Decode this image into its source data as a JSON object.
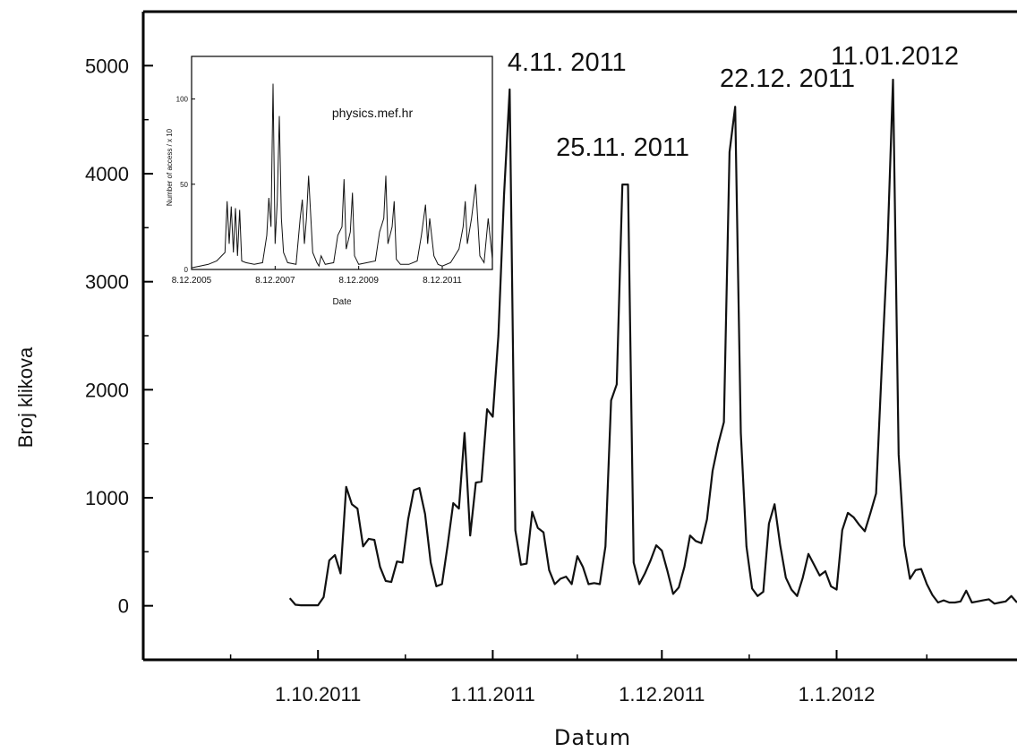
{
  "chart_data": [
    {
      "type": "line",
      "title": "",
      "xlabel": "Datum",
      "ylabel": "Broj klikova",
      "ylim": [
        -500,
        5500
      ],
      "yticks": [
        0,
        1000,
        2000,
        3000,
        4000,
        5000
      ],
      "xticks": [
        {
          "label": "1.10.2011",
          "day": 0
        },
        {
          "label": "1.11.2011",
          "day": 31
        },
        {
          "label": "1.12.2011",
          "day": 61
        },
        {
          "label": "1.1.2012",
          "day": 92
        }
      ],
      "xlim_days": [
        -31,
        124
      ],
      "grid": false,
      "legend": "none",
      "annotations": [
        {
          "text": "4.11. 2011",
          "x_day": 34,
          "y": 4780
        },
        {
          "text": "25.11. 2011",
          "x_day": 55,
          "y": 3900
        },
        {
          "text": "22.12. 2011",
          "x_day": 82,
          "y": 4620
        },
        {
          "text": "11.01.2012",
          "x_day": 102,
          "y": 4870
        }
      ],
      "series": [
        {
          "x_days": [
            -5,
            -4,
            -3,
            -2,
            -1,
            0,
            1,
            2,
            3,
            4,
            5,
            6,
            7,
            8,
            9,
            10,
            11,
            12,
            13,
            14,
            15,
            16,
            17,
            18,
            19,
            20,
            21,
            22,
            23,
            24,
            25,
            26,
            27,
            28,
            29,
            30,
            31,
            32,
            33,
            34,
            35,
            36,
            37,
            38,
            39,
            40,
            41,
            42,
            43,
            44,
            45,
            46,
            47,
            48,
            49,
            50,
            51,
            52,
            53,
            54,
            55,
            56,
            57,
            58,
            59,
            60,
            61,
            62,
            63,
            64,
            65,
            66,
            67,
            68,
            69,
            70,
            71,
            72,
            73,
            74,
            75,
            76,
            77,
            78,
            79,
            80,
            81,
            82,
            83,
            84,
            85,
            86,
            87,
            88,
            89,
            90,
            91,
            92,
            93,
            94,
            95,
            96,
            97,
            98,
            99,
            100,
            101,
            102,
            103,
            104,
            105,
            106,
            107,
            108,
            109,
            110,
            111,
            112,
            113,
            114,
            115,
            116,
            117,
            118,
            119,
            120,
            121,
            122,
            123,
            124
          ],
          "values": [
            70,
            10,
            5,
            5,
            5,
            5,
            80,
            420,
            470,
            300,
            1100,
            940,
            900,
            550,
            620,
            610,
            360,
            230,
            220,
            410,
            400,
            800,
            1070,
            1090,
            850,
            400,
            180,
            200,
            560,
            950,
            900,
            1600,
            650,
            1140,
            1150,
            1820,
            1750,
            2500,
            3800,
            4780,
            700,
            380,
            390,
            870,
            720,
            680,
            330,
            200,
            250,
            270,
            200,
            460,
            360,
            200,
            210,
            200,
            550,
            1900,
            2050,
            3900,
            3900,
            400,
            200,
            300,
            420,
            560,
            510,
            320,
            110,
            170,
            360,
            650,
            600,
            580,
            800,
            1250,
            1500,
            1700,
            4200,
            4620,
            1600,
            550,
            160,
            90,
            130,
            760,
            940,
            560,
            260,
            150,
            90,
            260,
            480,
            380,
            280,
            320,
            180,
            150,
            700,
            860,
            820,
            750,
            690,
            860,
            1040,
            2200,
            3300,
            4870,
            1400,
            560,
            250,
            330,
            340,
            200,
            100,
            30,
            50,
            30,
            30,
            40,
            140,
            30,
            40,
            50,
            60,
            20,
            30,
            40,
            90,
            30
          ]
        }
      ]
    },
    {
      "type": "line",
      "title": "physics.mef.hr",
      "xlabel": "Date",
      "ylabel": "Number of access / x 10",
      "ylim": [
        0,
        125
      ],
      "yticks": [
        0,
        50,
        100
      ],
      "xticks": [
        "8.12.2005",
        "8.12.2007",
        "8.12.2009",
        "8.12.2011"
      ],
      "xlim_years": [
        0,
        7.2
      ],
      "grid": false,
      "legend": "none",
      "series": [
        {
          "x_years": [
            0,
            0.2,
            0.4,
            0.6,
            0.8,
            0.85,
            0.9,
            0.95,
            1.0,
            1.05,
            1.1,
            1.15,
            1.2,
            1.3,
            1.5,
            1.7,
            1.8,
            1.85,
            1.9,
            1.95,
            2.0,
            2.05,
            2.1,
            2.15,
            2.2,
            2.3,
            2.5,
            2.6,
            2.65,
            2.7,
            2.75,
            2.8,
            2.9,
            3.0,
            3.05,
            3.1,
            3.2,
            3.4,
            3.5,
            3.6,
            3.65,
            3.7,
            3.8,
            3.85,
            3.9,
            4.0,
            4.2,
            4.4,
            4.5,
            4.6,
            4.65,
            4.7,
            4.8,
            4.85,
            4.9,
            5.0,
            5.2,
            5.4,
            5.5,
            5.6,
            5.65,
            5.7,
            5.8,
            5.9,
            6.0,
            6.2,
            6.4,
            6.5,
            6.55,
            6.6,
            6.7,
            6.8,
            6.9,
            7.0,
            7.1,
            7.2
          ],
          "values": [
            1,
            2,
            3,
            5,
            10,
            40,
            15,
            37,
            10,
            36,
            8,
            35,
            5,
            4,
            3,
            4,
            20,
            42,
            25,
            109,
            15,
            40,
            90,
            30,
            10,
            4,
            3,
            30,
            41,
            15,
            30,
            55,
            10,
            4,
            2,
            8,
            3,
            4,
            20,
            25,
            53,
            12,
            22,
            45,
            8,
            3,
            4,
            5,
            22,
            30,
            55,
            15,
            25,
            40,
            6,
            3,
            3,
            5,
            20,
            38,
            15,
            30,
            8,
            3,
            2,
            4,
            12,
            25,
            40,
            15,
            30,
            50,
            8,
            4,
            30,
            6
          ]
        }
      ]
    }
  ]
}
